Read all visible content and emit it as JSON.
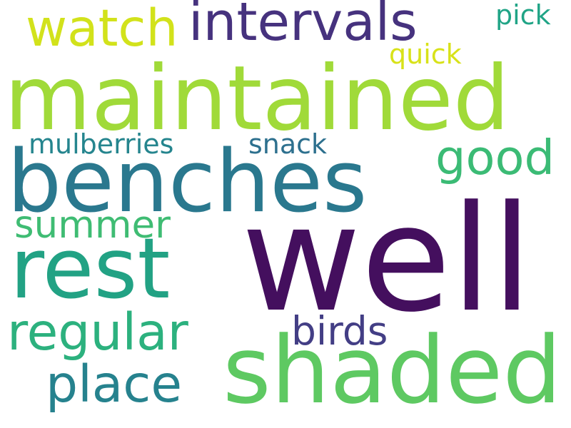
{
  "words": [
    {
      "text": "well",
      "color": "#440f5e"
    },
    {
      "text": "maintained",
      "color": "#a0da39"
    },
    {
      "text": "benches",
      "color": "#2a788e"
    },
    {
      "text": "shaded",
      "color": "#5ec962"
    },
    {
      "text": "rest",
      "color": "#22a284"
    },
    {
      "text": "intervals",
      "color": "#46327e"
    },
    {
      "text": "regular",
      "color": "#2cb17e"
    },
    {
      "text": "watch",
      "color": "#d2e21b"
    },
    {
      "text": "place",
      "color": "#26828e"
    },
    {
      "text": "good",
      "color": "#3bbb75"
    },
    {
      "text": "birds",
      "color": "#433e85"
    },
    {
      "text": "summer",
      "color": "#3fbc73"
    },
    {
      "text": "mulberries",
      "color": "#25858e"
    },
    {
      "text": "snack",
      "color": "#2d708e"
    },
    {
      "text": "pick",
      "color": "#20a486"
    },
    {
      "text": "quick",
      "color": "#d8e219"
    }
  ]
}
